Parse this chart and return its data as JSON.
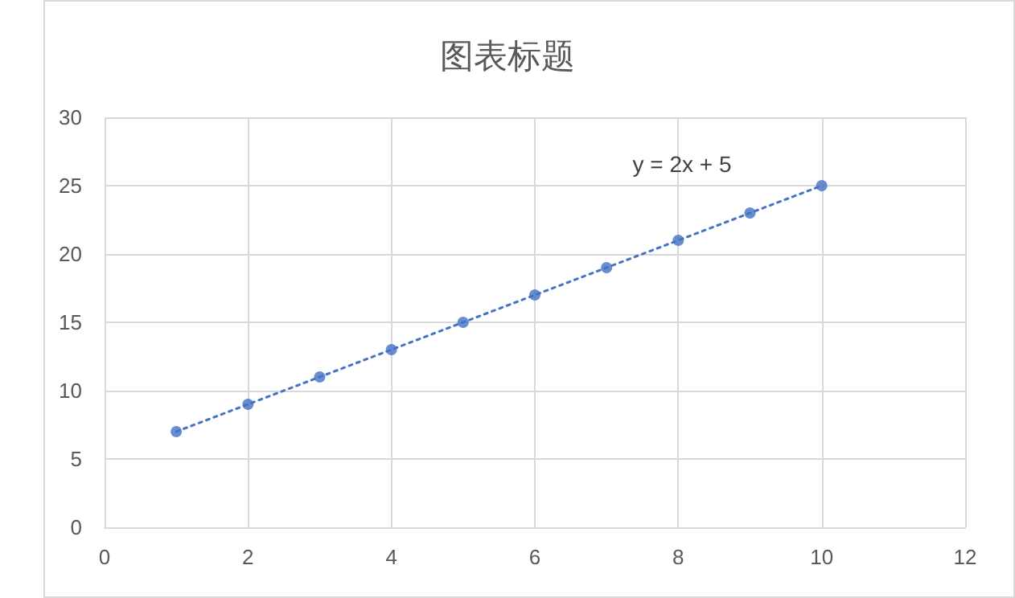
{
  "chart_data": {
    "type": "scatter",
    "title": "图表标题",
    "x": [
      1,
      2,
      3,
      4,
      5,
      6,
      7,
      8,
      9,
      10
    ],
    "series": [
      {
        "color": "#4472c4",
        "values": [
          7,
          9,
          11,
          13,
          15,
          17,
          19,
          21,
          23,
          25
        ],
        "marker": "circle"
      },
      {
        "type": "line",
        "color": "#4472c4",
        "x": [
          1,
          10
        ],
        "values": [
          7,
          25
        ],
        "line_style": "dotted",
        "marker": "none"
      }
    ],
    "xlim": [
      0,
      12
    ],
    "xticks": [
      0,
      2,
      4,
      6,
      8,
      10,
      12
    ],
    "ylim": [
      0,
      30
    ],
    "yticks": [
      0,
      5,
      10,
      15,
      20,
      25,
      30
    ],
    "grid": true,
    "annotations": [
      "y = 2x + 5"
    ]
  }
}
